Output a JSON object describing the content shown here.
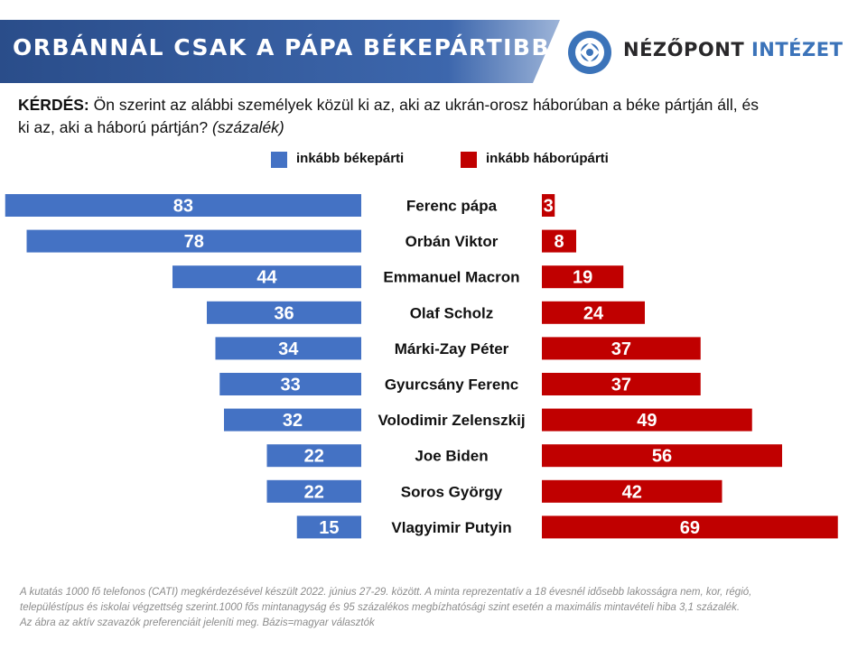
{
  "header": {
    "title": "ORBÁNNÁL CSAK A PÁPA BÉKEPÁRTIBB",
    "logo": {
      "word1": "NÉZŐPONT",
      "word2": "INTÉZET",
      "icon": "nezopont-logo-icon"
    }
  },
  "question": {
    "prefix": "KÉRDÉS:",
    "text": "Ön szerint az alábbi személyek közül ki az, aki az ukrán-orosz háborúban a béke pártján áll, és ki az, aki a háború pártján?",
    "unit": "(százalék)"
  },
  "colors": {
    "peace": "#4472c4",
    "war": "#c00000",
    "banner": "#2e5596",
    "logo_blue": "#3b73b9"
  },
  "chart_data": {
    "type": "bar",
    "categories": [
      "Ferenc pápa",
      "Orbán Viktor",
      "Emmanuel Macron",
      "Olaf Scholz",
      "Márki-Zay Péter",
      "Gyurcsány Ferenc",
      "Volodimir Zelenszkij",
      "Joe Biden",
      "Soros György",
      "Vlagyimir Putyin"
    ],
    "series": [
      {
        "name": "inkább békepárti",
        "values": [
          83,
          78,
          44,
          36,
          34,
          33,
          32,
          22,
          22,
          15
        ]
      },
      {
        "name": "inkább háborúpárti",
        "values": [
          3,
          8,
          19,
          24,
          37,
          37,
          49,
          56,
          42,
          69
        ]
      }
    ],
    "legend": "top-center",
    "grid": false
  },
  "footnote": [
    "A kutatás 1000 fő telefonos (CATI) megkérdezésével készült 2022. június 27-29. között. A minta reprezentatív a 18 évesnél idősebb lakosságra nem, kor, régió,",
    "településtípus és iskolai végzettség szerint.1000 fős mintanagyság és 95 százalékos megbízhatósági szint esetén a maximális mintavételi hiba 3,1 százalék.",
    "Az ábra az aktív szavazók preferenciáit jeleníti meg. Bázis=magyar választók"
  ]
}
